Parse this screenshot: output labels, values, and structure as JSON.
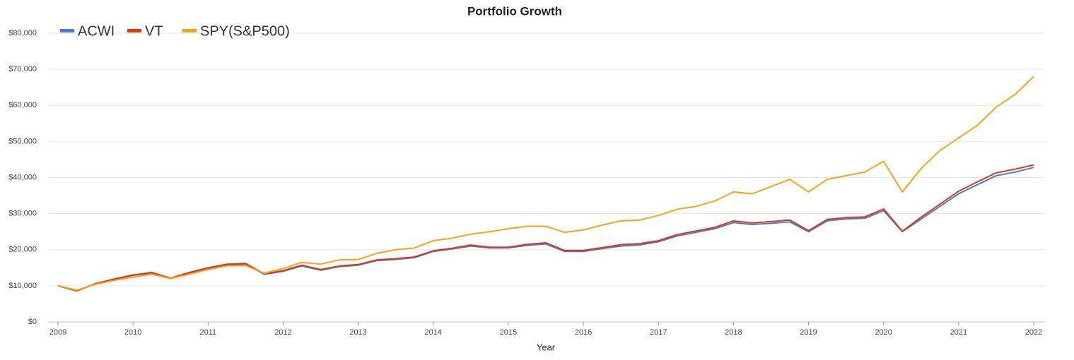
{
  "chart_data": {
    "type": "line",
    "title": "Portfolio Growth",
    "x_label": "Year",
    "x": [
      2009,
      2009.25,
      2009.5,
      2009.75,
      2010,
      2010.25,
      2010.5,
      2010.75,
      2011,
      2011.25,
      2011.5,
      2011.75,
      2012,
      2012.25,
      2012.5,
      2012.75,
      2013,
      2013.25,
      2013.5,
      2013.75,
      2014,
      2014.25,
      2014.5,
      2014.75,
      2015,
      2015.25,
      2015.5,
      2015.75,
      2016,
      2016.25,
      2016.5,
      2016.75,
      2017,
      2017.25,
      2017.5,
      2017.75,
      2018,
      2018.25,
      2018.5,
      2018.75,
      2019,
      2019.25,
      2019.5,
      2019.75,
      2020,
      2020.25,
      2020.5,
      2020.75,
      2021,
      2021.25,
      2021.5,
      2021.75,
      2022
    ],
    "series": [
      {
        "name": "ACWI",
        "color": "#4a7bd8",
        "values": [
          10000,
          8600,
          10500,
          11800,
          12900,
          13500,
          12000,
          13500,
          14800,
          15800,
          16000,
          13200,
          14000,
          15500,
          14300,
          15300,
          15700,
          17000,
          17300,
          17800,
          19500,
          20200,
          21000,
          20500,
          20500,
          21200,
          21600,
          19500,
          19500,
          20300,
          21000,
          21300,
          22200,
          23800,
          24800,
          25800,
          27500,
          27000,
          27300,
          27700,
          25000,
          28000,
          28500,
          28700,
          30800,
          25000,
          28500,
          32000,
          35500,
          38000,
          40500,
          41500,
          42800
        ]
      },
      {
        "name": "VT",
        "color": "#dc3912",
        "values": [
          10000,
          8600,
          10600,
          11900,
          13000,
          13700,
          12100,
          13700,
          15000,
          16000,
          16200,
          13300,
          14200,
          15700,
          14500,
          15500,
          15900,
          17200,
          17500,
          18000,
          19700,
          20400,
          21300,
          20700,
          20700,
          21500,
          21900,
          19800,
          19800,
          20600,
          21400,
          21700,
          22500,
          24200,
          25200,
          26200,
          28000,
          27400,
          27800,
          28200,
          25300,
          28400,
          28900,
          29100,
          31300,
          25100,
          29000,
          32600,
          36200,
          38800,
          41300,
          42300,
          43500
        ]
      },
      {
        "name": "SPY(S&P500)",
        "color": "#f7a21b",
        "values": [
          10000,
          8800,
          10400,
          11500,
          12400,
          13200,
          12000,
          13200,
          14500,
          15500,
          15600,
          13500,
          14800,
          16500,
          16000,
          17200,
          17300,
          19000,
          20000,
          20500,
          22500,
          23200,
          24300,
          25000,
          25800,
          26500,
          26500,
          24800,
          25500,
          26800,
          28000,
          28200,
          29500,
          31200,
          32000,
          33500,
          36000,
          35500,
          37500,
          39500,
          36000,
          39500,
          40500,
          41500,
          44500,
          36000,
          42500,
          47500,
          51000,
          54500,
          59500,
          63000,
          68000
        ]
      }
    ],
    "xlim": [
      2009,
      2022
    ],
    "xticks": [
      2009,
      2010,
      2011,
      2012,
      2013,
      2014,
      2015,
      2016,
      2017,
      2018,
      2019,
      2020,
      2021,
      2022
    ],
    "ylim": [
      0,
      80000
    ],
    "yticks": [
      {
        "value": 0,
        "label": "$0"
      },
      {
        "value": 10000,
        "label": "$10,000"
      },
      {
        "value": 20000,
        "label": "$20,000"
      },
      {
        "value": 30000,
        "label": "$30,000"
      },
      {
        "value": 40000,
        "label": "$40,000"
      },
      {
        "value": 50000,
        "label": "$50,000"
      },
      {
        "value": 60000,
        "label": "$60,000"
      },
      {
        "value": 70000,
        "label": "$70,000"
      },
      {
        "value": 80000,
        "label": "$80,000"
      }
    ],
    "grid": true,
    "legend": "top-left"
  }
}
